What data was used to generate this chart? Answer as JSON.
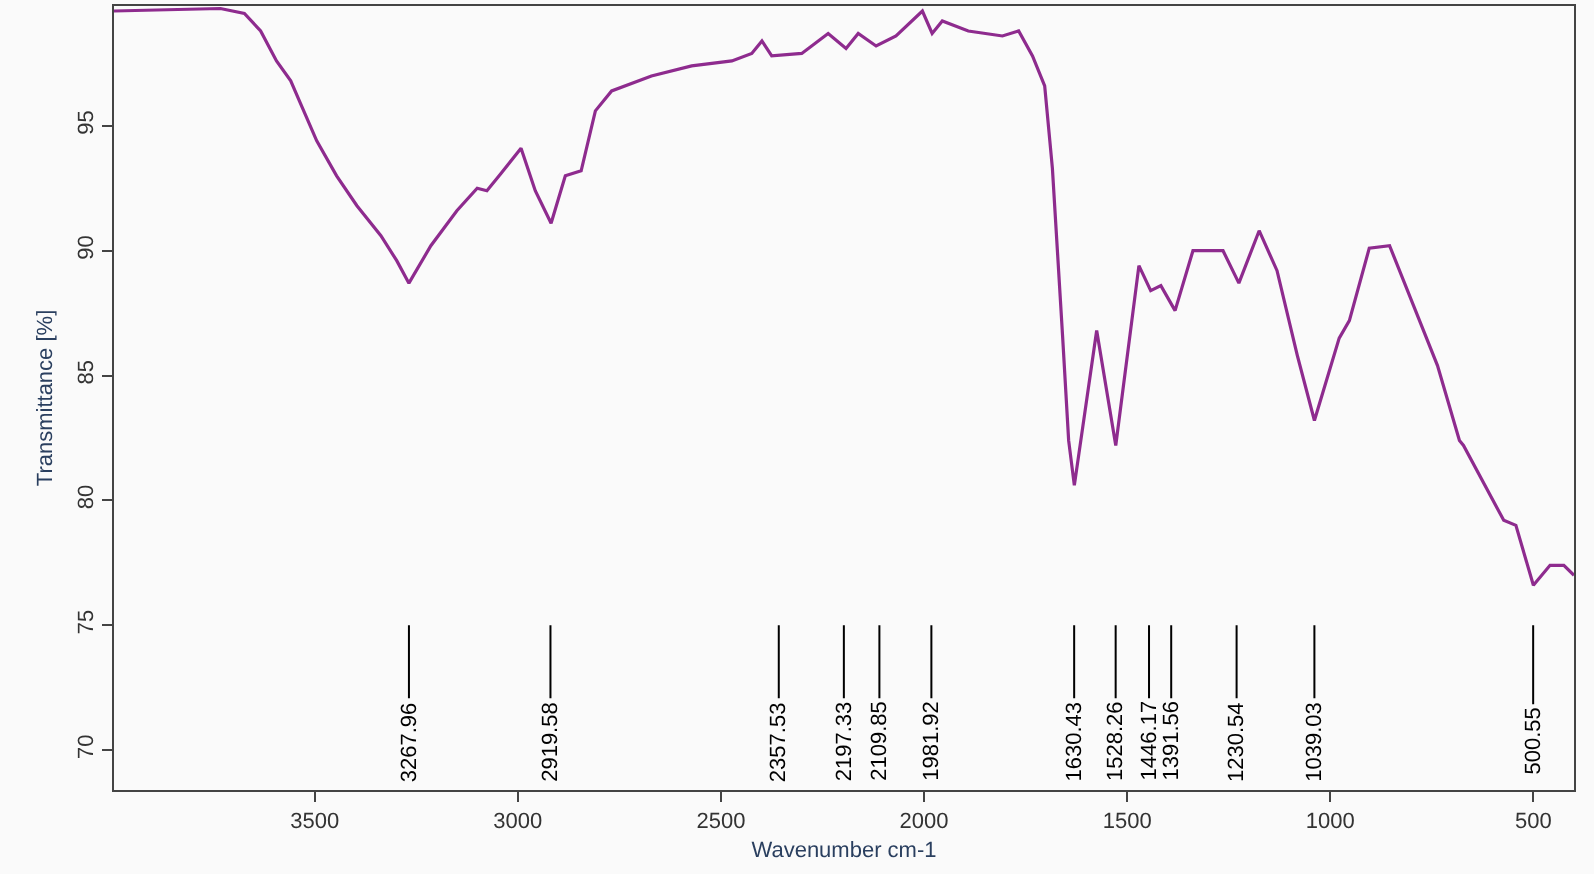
{
  "chart_data": {
    "type": "line",
    "xlabel": "Wavenumber cm-1",
    "ylabel": "Transmittance [%]",
    "x": [
      3994,
      3732,
      3673,
      3633,
      3594,
      3559,
      3535,
      3495,
      3446,
      3396,
      3337,
      3298,
      3268,
      3214,
      3150,
      3100,
      3076,
      3041,
      2992,
      2957,
      2918,
      2883,
      2844,
      2809,
      2769,
      2671,
      2572,
      2473,
      2424,
      2399,
      2375,
      2301,
      2236,
      2192,
      2162,
      2118,
      2069,
      2004,
      1980,
      1955,
      1891,
      1807,
      1767,
      1733,
      1703,
      1684,
      1659,
      1644,
      1630,
      1575,
      1528,
      1471,
      1442,
      1417,
      1382,
      1338,
      1264,
      1225,
      1175,
      1131,
      1081,
      1039,
      978,
      953,
      904,
      854,
      795,
      736,
      682,
      672,
      573,
      543,
      500,
      459,
      425,
      400
    ],
    "series": [
      {
        "color": "#8e2b8e",
        "values": [
          99.6,
          99.7,
          99.5,
          98.8,
          97.6,
          96.8,
          95.9,
          94.4,
          93.0,
          91.8,
          90.6,
          89.6,
          88.7,
          90.2,
          91.6,
          92.5,
          92.4,
          93.1,
          94.1,
          92.4,
          91.1,
          93.0,
          93.2,
          95.6,
          96.4,
          97.0,
          97.4,
          97.6,
          97.9,
          98.4,
          97.8,
          97.9,
          98.7,
          98.1,
          98.7,
          98.2,
          98.6,
          99.6,
          98.7,
          99.2,
          98.8,
          98.6,
          98.8,
          97.8,
          96.6,
          93.3,
          86.6,
          82.4,
          80.6,
          86.8,
          82.2,
          89.4,
          88.4,
          88.6,
          87.6,
          90.0,
          90.0,
          88.7,
          90.8,
          89.2,
          85.8,
          83.2,
          86.5,
          87.2,
          90.1,
          90.2,
          87.8,
          85.4,
          82.4,
          82.2,
          79.2,
          79.0,
          76.6,
          77.4,
          77.4,
          77.0
        ]
      }
    ],
    "xlim": [
      3994,
      400
    ],
    "ylim": [
      68.4,
      99.8
    ],
    "xticks": [
      3500,
      3000,
      2500,
      2000,
      1500,
      1000,
      500
    ],
    "yticks": [
      70,
      75,
      80,
      85,
      90,
      95
    ],
    "marker": "none",
    "line_style": "solid",
    "ref_lines": [
      {
        "axis": "x",
        "value": 3267.96,
        "label": "3267.96"
      },
      {
        "axis": "x",
        "value": 2919.58,
        "label": "2919.58"
      },
      {
        "axis": "x",
        "value": 2357.53,
        "label": "2357.53"
      },
      {
        "axis": "x",
        "value": 2197.33,
        "label": "2197.33"
      },
      {
        "axis": "x",
        "value": 2109.85,
        "label": "2109.85"
      },
      {
        "axis": "x",
        "value": 1981.92,
        "label": "1981.92"
      },
      {
        "axis": "x",
        "value": 1630.43,
        "label": "1630.43"
      },
      {
        "axis": "x",
        "value": 1528.26,
        "label": "1528.26"
      },
      {
        "axis": "x",
        "value": 1446.17,
        "label": "1446.17"
      },
      {
        "axis": "x",
        "value": 1391.56,
        "label": "1391.56"
      },
      {
        "axis": "x",
        "value": 1230.54,
        "label": "1230.54"
      },
      {
        "axis": "x",
        "value": 1039.03,
        "label": "1039.03"
      },
      {
        "axis": "x",
        "value": 500.55,
        "label": "500.55"
      }
    ]
  }
}
